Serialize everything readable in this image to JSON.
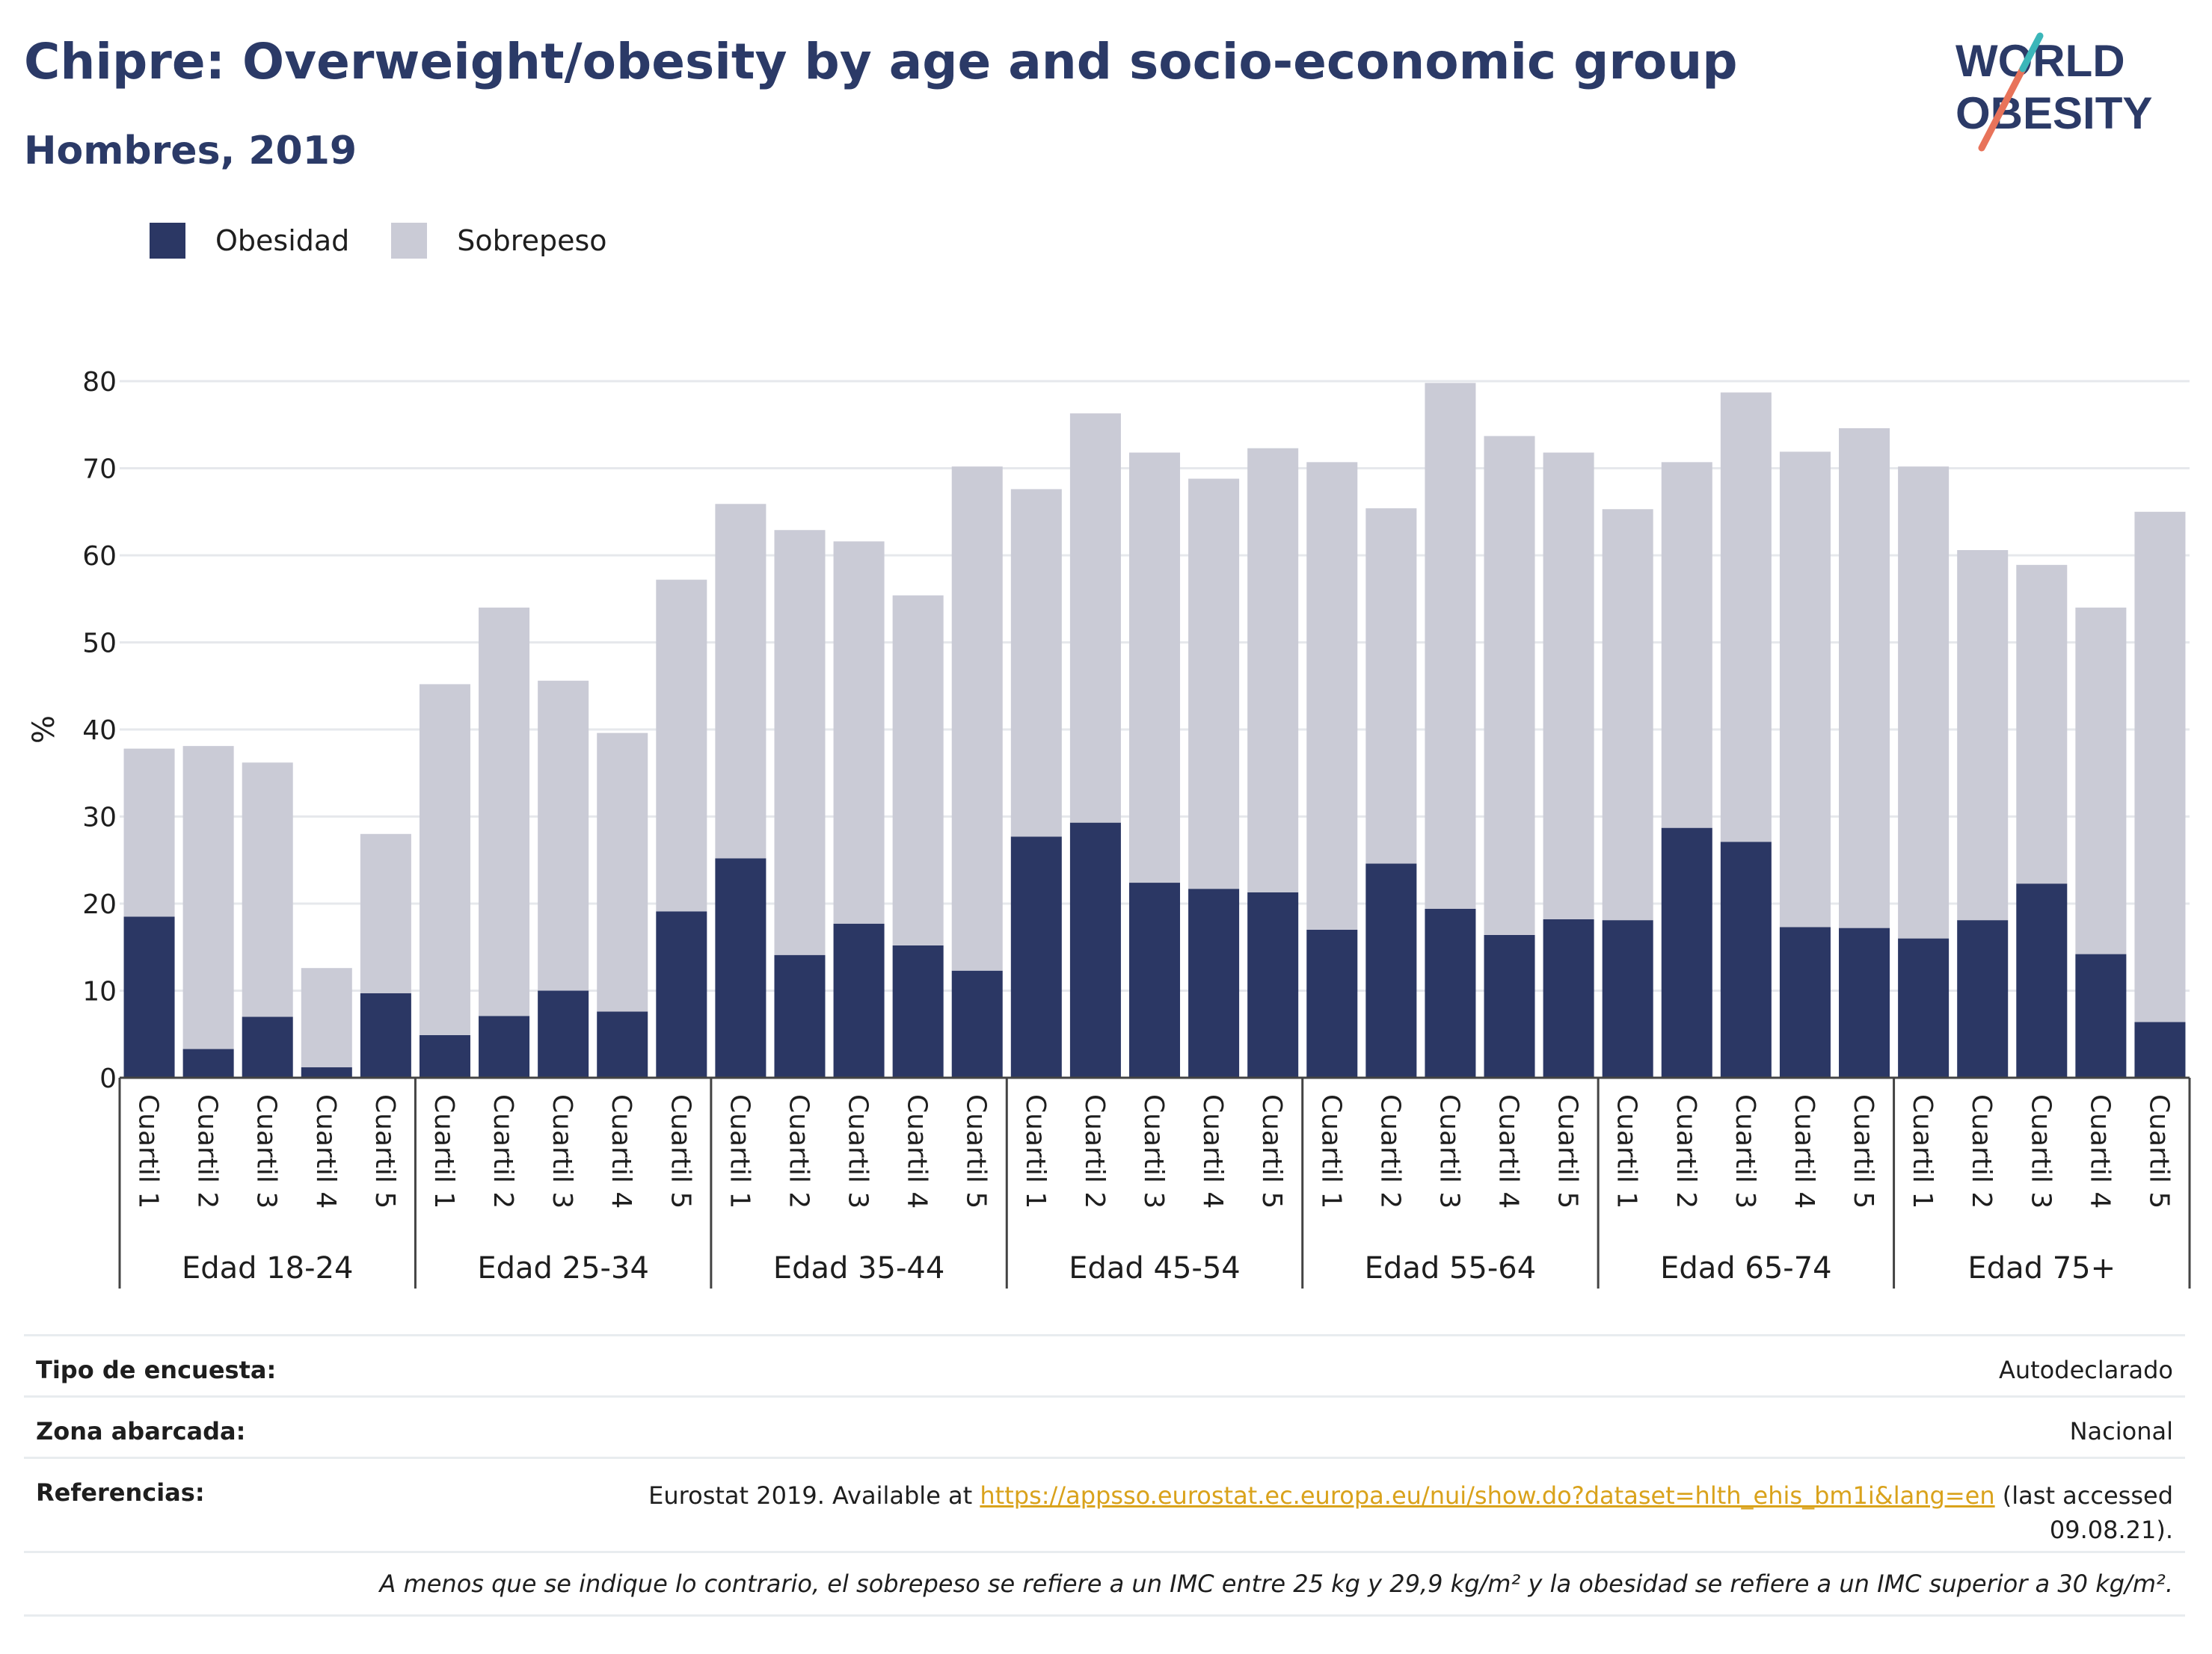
{
  "header": {
    "title": "Chipre: Overweight/obesity by age and socio-economic group",
    "subtitle": "Hombres, 2019"
  },
  "logo": {
    "line1": "WORLD",
    "line2": "OBESITY"
  },
  "legend": [
    {
      "label": "Obesidad",
      "color": "#2b3764"
    },
    {
      "label": "Sobrepeso",
      "color": "#cacbd6"
    }
  ],
  "chart_data": {
    "type": "bar",
    "stacked": true,
    "ylabel": "%",
    "ylim": [
      0,
      80
    ],
    "yticks": [
      0,
      10,
      20,
      30,
      40,
      50,
      60,
      70,
      80
    ],
    "grid": true,
    "legend_position": "top-left",
    "groups": [
      "Edad 18-24",
      "Edad 25-34",
      "Edad 35-44",
      "Edad 45-54",
      "Edad 55-64",
      "Edad 65-74",
      "Edad 75+"
    ],
    "categories": [
      "Cuartil 1",
      "Cuartil 2",
      "Cuartil 3",
      "Cuartil 4",
      "Cuartil 5"
    ],
    "series": [
      {
        "name": "Obesidad",
        "color": "#2b3764",
        "values": [
          [
            18.5,
            3.3,
            7.0,
            1.2,
            9.7
          ],
          [
            4.9,
            7.1,
            10.0,
            7.6,
            19.1
          ],
          [
            25.2,
            14.1,
            17.7,
            15.2,
            12.3
          ],
          [
            27.7,
            29.3,
            22.4,
            21.7,
            21.3
          ],
          [
            17.0,
            24.6,
            19.4,
            16.4,
            18.2
          ],
          [
            18.1,
            28.7,
            27.1,
            17.3,
            17.2
          ],
          [
            16.0,
            18.1,
            22.3,
            14.2,
            6.4
          ]
        ]
      },
      {
        "name": "Sobrepeso",
        "color": "#cacbd6",
        "values": [
          [
            19.3,
            34.8,
            29.2,
            11.4,
            18.3
          ],
          [
            40.3,
            46.9,
            35.6,
            32.0,
            38.1
          ],
          [
            40.7,
            48.8,
            43.9,
            40.2,
            57.9
          ],
          [
            39.9,
            47.0,
            49.4,
            47.1,
            51.0
          ],
          [
            53.7,
            40.8,
            60.4,
            57.3,
            53.6
          ],
          [
            47.2,
            42.0,
            51.6,
            54.6,
            57.4
          ],
          [
            54.2,
            42.5,
            36.6,
            39.8,
            58.6
          ]
        ]
      }
    ]
  },
  "meta": {
    "survey_label": "Tipo de encuesta:",
    "survey_value": "Autodeclarado",
    "area_label": "Zona abarcada:",
    "area_value": "Nacional",
    "refs_label": "Referencias:",
    "refs_prefix": "Eurostat 2019. Available at ",
    "refs_link": "https://appsso.eurostat.ec.europa.eu/nui/show.do?dataset=hlth_ehis_bm1i&lang=en",
    "refs_suffix": " (last accessed",
    "refs_date": "09.08.21).",
    "note": "A menos que se indique lo contrario, el sobrepeso se refiere a un IMC entre 25 kg y 29,9 kg/m² y la obesidad se refiere a un IMC superior a 30 kg/m²."
  }
}
